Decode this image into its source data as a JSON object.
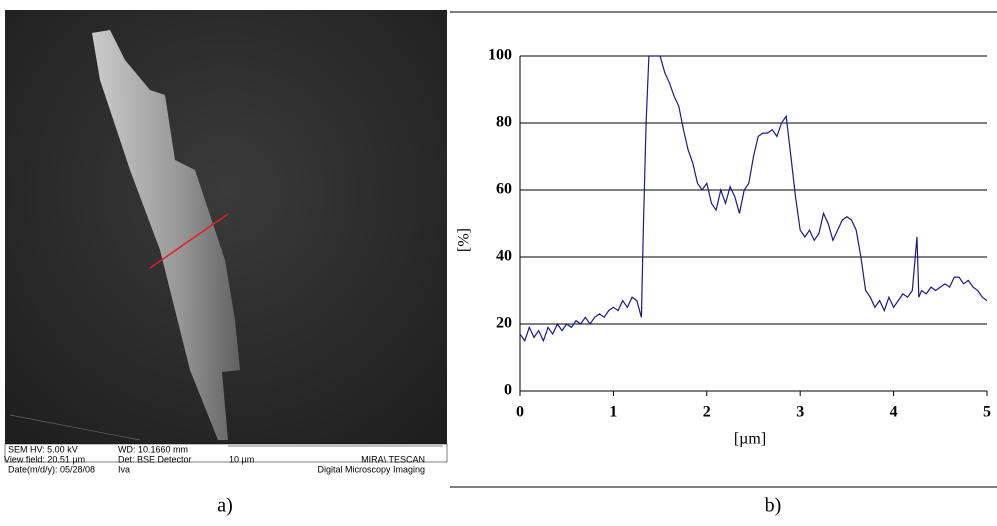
{
  "image_a": {
    "hv": "SEM HV: 5.00 kV",
    "wd": "WD: 10.1660 mm",
    "view_field": "View field: 20.51 µm",
    "detector": "Det: BSE Detector",
    "scale": "10 µm",
    "vendor": "MIRA\\ TESCAN",
    "date": "Date(m/d/y): 05/28/08",
    "operator": "Iva",
    "lab": "Digital Microscopy Imaging"
  },
  "captions": [
    "a)",
    "b)"
  ],
  "chart_data": {
    "type": "line",
    "xlabel": "[µm]",
    "ylabel": "[%]",
    "x": [
      0,
      0.05,
      0.1,
      0.15,
      0.2,
      0.25,
      0.3,
      0.35,
      0.4,
      0.45,
      0.5,
      0.55,
      0.6,
      0.65,
      0.7,
      0.75,
      0.8,
      0.85,
      0.9,
      0.95,
      1.0,
      1.05,
      1.1,
      1.15,
      1.2,
      1.25,
      1.3,
      1.32,
      1.35,
      1.38,
      1.5,
      1.55,
      1.6,
      1.65,
      1.7,
      1.75,
      1.8,
      1.85,
      1.9,
      1.95,
      2.0,
      2.05,
      2.1,
      2.15,
      2.2,
      2.25,
      2.3,
      2.35,
      2.4,
      2.45,
      2.5,
      2.55,
      2.6,
      2.65,
      2.7,
      2.75,
      2.8,
      2.85,
      2.9,
      2.95,
      3.0,
      3.05,
      3.1,
      3.15,
      3.2,
      3.25,
      3.3,
      3.35,
      3.4,
      3.45,
      3.5,
      3.55,
      3.6,
      3.65,
      3.7,
      3.75,
      3.8,
      3.85,
      3.9,
      3.95,
      4.0,
      4.05,
      4.1,
      4.15,
      4.2,
      4.25,
      4.27,
      4.3,
      4.35,
      4.4,
      4.45,
      4.5,
      4.55,
      4.6,
      4.65,
      4.7,
      4.75,
      4.8,
      4.85,
      4.9,
      4.95,
      5.0
    ],
    "series": [
      {
        "color": "#1a1a8c",
        "values": [
          17,
          15,
          19,
          16,
          18,
          15,
          19,
          17,
          20,
          18,
          20,
          19,
          21,
          20,
          22,
          20,
          22,
          23,
          22,
          24,
          25,
          24,
          27,
          25,
          28,
          27,
          22,
          48,
          80,
          100,
          100,
          95,
          92,
          88,
          85,
          78,
          72,
          68,
          62,
          60,
          62,
          56,
          54,
          60,
          56,
          61,
          58,
          53,
          60,
          62,
          70,
          76,
          77,
          77,
          78,
          76,
          80,
          82,
          70,
          58,
          48,
          46,
          48,
          45,
          47,
          53,
          50,
          45,
          48,
          51,
          52,
          51,
          48,
          40,
          30,
          28,
          25,
          27,
          24,
          28,
          25,
          27,
          29,
          28,
          30,
          46,
          28,
          30,
          29,
          31,
          30,
          31,
          32,
          31,
          34,
          34,
          32,
          33,
          31,
          30,
          28,
          27
        ]
      }
    ],
    "xlim": [
      0,
      5
    ],
    "ylim": [
      0,
      100
    ],
    "xticks": [
      0,
      1,
      2,
      3,
      4,
      5
    ],
    "yticks": [
      0,
      20,
      40,
      60,
      80,
      100
    ],
    "grid": true
  }
}
